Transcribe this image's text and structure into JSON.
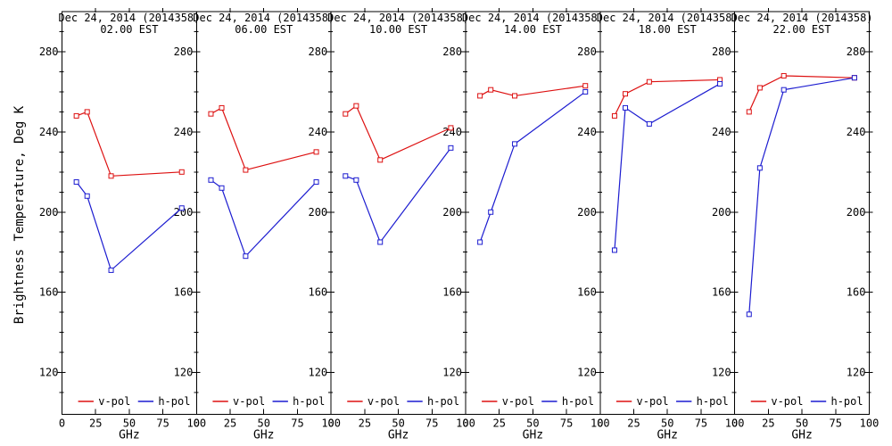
{
  "figure": {
    "y_axis_title": "Brightness Temperature, Deg K",
    "x_axis_unit": "GHz",
    "colors": {
      "v_pol": "#dd1010",
      "h_pol": "#1c1cd0",
      "axis": "#000000",
      "background": "#ffffff"
    }
  },
  "chart_data": {
    "type": "line",
    "title_date": "Dec 24, 2014 (2014358)",
    "xlabel": "GHz",
    "ylabel": "Brightness Temperature, Deg K",
    "x": [
      10.7,
      18.7,
      36.5,
      89
    ],
    "xlim": [
      0,
      100
    ],
    "ylim": [
      99,
      300
    ],
    "x_ticks": [
      0,
      25,
      50,
      75,
      100
    ],
    "y_ticks": [
      120,
      160,
      200,
      240,
      280
    ],
    "grid": false,
    "legend_position": "bottom-inside-each-panel",
    "marker": "open-square",
    "series_names": [
      "v-pol",
      "h-pol"
    ],
    "panels": [
      {
        "time": "02.00 EST",
        "v_pol": [
          248,
          250,
          218,
          220
        ],
        "h_pol": [
          215,
          208,
          171,
          202
        ]
      },
      {
        "time": "06.00 EST",
        "v_pol": [
          249,
          252,
          221,
          230
        ],
        "h_pol": [
          216,
          212,
          178,
          215
        ]
      },
      {
        "time": "10.00 EST",
        "v_pol": [
          249,
          253,
          226,
          242
        ],
        "h_pol": [
          218,
          216,
          185,
          232
        ]
      },
      {
        "time": "14.00 EST",
        "v_pol": [
          258,
          261,
          258,
          263
        ],
        "h_pol": [
          185,
          200,
          234,
          260
        ]
      },
      {
        "time": "18.00 EST",
        "v_pol": [
          248,
          259,
          265,
          266
        ],
        "h_pol": [
          181,
          252,
          244,
          264
        ]
      },
      {
        "time": "22.00 EST",
        "v_pol": [
          250,
          262,
          268,
          267
        ],
        "h_pol": [
          149,
          222,
          261,
          267
        ]
      }
    ],
    "legend": {
      "v_label": "v-pol",
      "h_label": "h-pol"
    }
  }
}
